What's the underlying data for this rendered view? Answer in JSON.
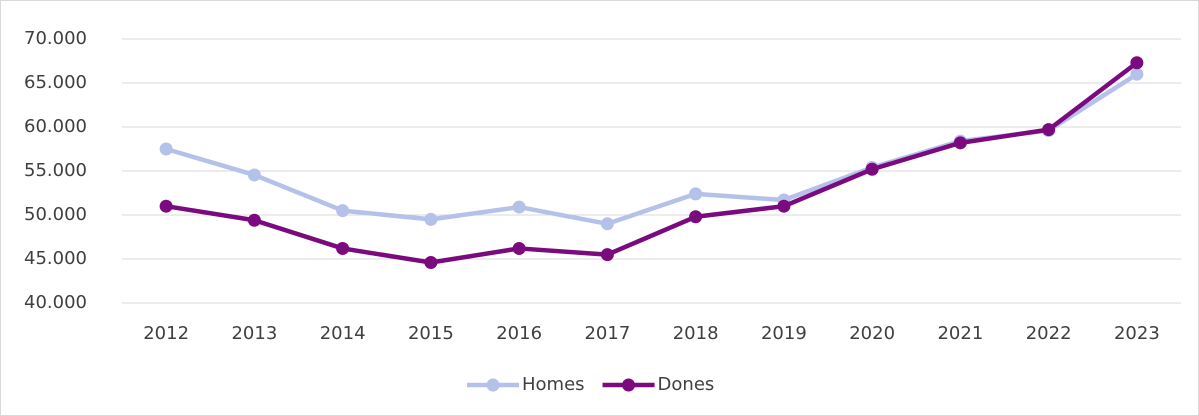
{
  "chart_data": {
    "type": "line",
    "categories": [
      "2012",
      "2013",
      "2014",
      "2015",
      "2016",
      "2017",
      "2018",
      "2019",
      "2020",
      "2021",
      "2022",
      "2023"
    ],
    "series": [
      {
        "name": "Homes",
        "color": "#b4c1e9",
        "values": [
          57500,
          54550,
          50500,
          49500,
          50900,
          49000,
          52400,
          51700,
          55400,
          58400,
          59600,
          66000
        ]
      },
      {
        "name": "Dones",
        "color": "#7b0a7f",
        "values": [
          51000,
          49400,
          46200,
          44600,
          46200,
          45500,
          49800,
          51000,
          55200,
          58200,
          59700,
          67300
        ]
      }
    ],
    "ylim": [
      40000,
      70000
    ],
    "yticks": [
      {
        "value": 40000,
        "label": "40.000"
      },
      {
        "value": 45000,
        "label": "45.000"
      },
      {
        "value": 50000,
        "label": "50.000"
      },
      {
        "value": 55000,
        "label": "55.000"
      },
      {
        "value": 60000,
        "label": "60.000"
      },
      {
        "value": 65000,
        "label": "65.000"
      },
      {
        "value": 70000,
        "label": "70.000"
      }
    ],
    "grid": true,
    "legend": "bottom"
  }
}
